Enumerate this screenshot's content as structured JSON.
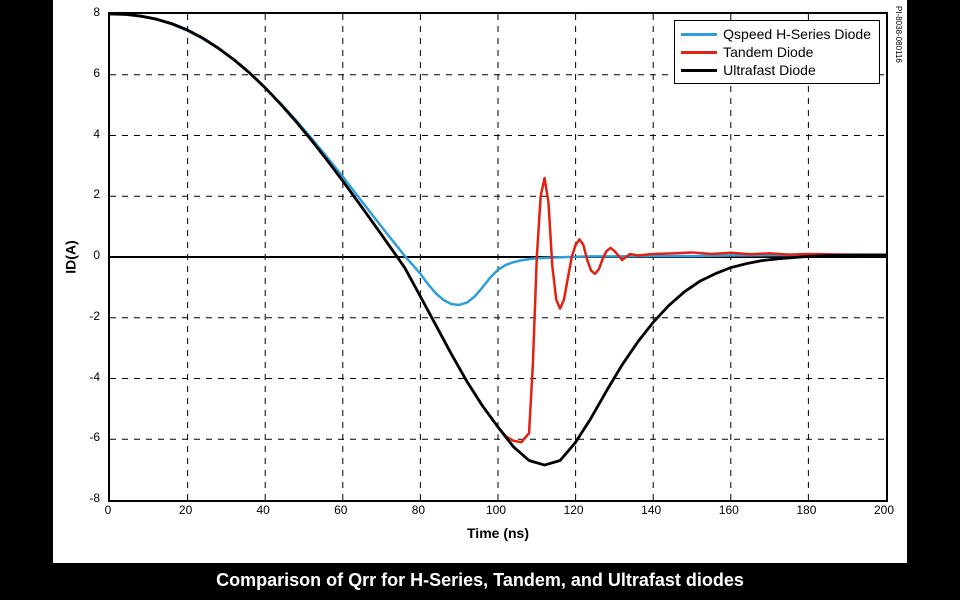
{
  "caption": "Comparison of Qrr for H-Series, Tandem, and Ultrafast diodes",
  "side_code": "PI-8038-080116",
  "chart": {
    "type": "line",
    "background_color": "#ffffff",
    "grid_color": "#000000",
    "grid_dash": "6,6",
    "zero_line_width": 2,
    "xlabel": "Time (ns)",
    "ylabel": "ID(A)",
    "label_fontsize": 14,
    "tick_fontsize": 12,
    "xlim": [
      0,
      200
    ],
    "ylim": [
      -8,
      8
    ],
    "xtick_step": 20,
    "ytick_step": 2,
    "legend": {
      "position": "top-right",
      "items": [
        {
          "label": "Qspeed H-Series Diode",
          "color": "#2e9ddb"
        },
        {
          "label": "Tandem Diode",
          "color": "#e32012"
        },
        {
          "label": "Ultrafast Diode",
          "color": "#000000"
        }
      ]
    },
    "series": [
      {
        "name": "Qspeed H-Series Diode",
        "color": "#2e9ddb",
        "line_width": 2.5,
        "points": [
          [
            0,
            8.0
          ],
          [
            4,
            7.98
          ],
          [
            8,
            7.92
          ],
          [
            12,
            7.82
          ],
          [
            16,
            7.66
          ],
          [
            20,
            7.45
          ],
          [
            24,
            7.18
          ],
          [
            28,
            6.86
          ],
          [
            32,
            6.48
          ],
          [
            36,
            6.05
          ],
          [
            40,
            5.57
          ],
          [
            44,
            5.05
          ],
          [
            48,
            4.49
          ],
          [
            52,
            3.9
          ],
          [
            56,
            3.28
          ],
          [
            60,
            2.64
          ],
          [
            64,
            1.98
          ],
          [
            68,
            1.32
          ],
          [
            72,
            0.67
          ],
          [
            76,
            0.03
          ],
          [
            80,
            -0.55
          ],
          [
            82,
            -0.9
          ],
          [
            84,
            -1.2
          ],
          [
            86,
            -1.42
          ],
          [
            88,
            -1.55
          ],
          [
            90,
            -1.58
          ],
          [
            92,
            -1.5
          ],
          [
            94,
            -1.3
          ],
          [
            96,
            -1.0
          ],
          [
            98,
            -0.68
          ],
          [
            100,
            -0.42
          ],
          [
            102,
            -0.26
          ],
          [
            104,
            -0.17
          ],
          [
            106,
            -0.11
          ],
          [
            108,
            -0.07
          ],
          [
            110,
            -0.04
          ],
          [
            114,
            -0.02
          ],
          [
            118,
            0.0
          ],
          [
            124,
            0.02
          ],
          [
            130,
            0.02
          ],
          [
            140,
            0.03
          ],
          [
            150,
            0.03
          ],
          [
            160,
            0.05
          ],
          [
            170,
            0.06
          ],
          [
            180,
            0.07
          ],
          [
            190,
            0.07
          ],
          [
            200,
            0.07
          ]
        ]
      },
      {
        "name": "Tandem Diode",
        "color": "#e32012",
        "line_width": 2.5,
        "points": [
          [
            0,
            8.0
          ],
          [
            4,
            7.99
          ],
          [
            8,
            7.93
          ],
          [
            12,
            7.83
          ],
          [
            16,
            7.68
          ],
          [
            20,
            7.47
          ],
          [
            24,
            7.2
          ],
          [
            28,
            6.87
          ],
          [
            32,
            6.49
          ],
          [
            36,
            6.06
          ],
          [
            40,
            5.57
          ],
          [
            44,
            5.03
          ],
          [
            48,
            4.45
          ],
          [
            52,
            3.83
          ],
          [
            56,
            3.18
          ],
          [
            60,
            2.5
          ],
          [
            64,
            1.8
          ],
          [
            68,
            1.09
          ],
          [
            72,
            0.37
          ],
          [
            76,
            -0.36
          ],
          [
            80,
            -1.3
          ],
          [
            84,
            -2.25
          ],
          [
            88,
            -3.2
          ],
          [
            92,
            -4.1
          ],
          [
            96,
            -4.9
          ],
          [
            100,
            -5.6
          ],
          [
            102,
            -5.9
          ],
          [
            104,
            -6.05
          ],
          [
            106,
            -6.1
          ],
          [
            108,
            -5.8
          ],
          [
            109,
            -3.5
          ],
          [
            110,
            0.0
          ],
          [
            111,
            2.0
          ],
          [
            112,
            2.6
          ],
          [
            113,
            1.8
          ],
          [
            114,
            -0.3
          ],
          [
            115,
            -1.4
          ],
          [
            116,
            -1.7
          ],
          [
            117,
            -1.4
          ],
          [
            118,
            -0.7
          ],
          [
            119,
            0.0
          ],
          [
            120,
            0.4
          ],
          [
            121,
            0.58
          ],
          [
            122,
            0.4
          ],
          [
            123,
            -0.1
          ],
          [
            124,
            -0.45
          ],
          [
            125,
            -0.55
          ],
          [
            126,
            -0.4
          ],
          [
            127,
            -0.05
          ],
          [
            128,
            0.2
          ],
          [
            129,
            0.3
          ],
          [
            130,
            0.2
          ],
          [
            132,
            -0.1
          ],
          [
            134,
            0.1
          ],
          [
            136,
            0.05
          ],
          [
            140,
            0.1
          ],
          [
            145,
            0.12
          ],
          [
            150,
            0.15
          ],
          [
            155,
            0.1
          ],
          [
            160,
            0.14
          ],
          [
            165,
            0.09
          ],
          [
            170,
            0.12
          ],
          [
            175,
            0.08
          ],
          [
            180,
            0.1
          ],
          [
            190,
            0.08
          ],
          [
            200,
            0.07
          ]
        ]
      },
      {
        "name": "Ultrafast Diode",
        "color": "#000000",
        "line_width": 2.8,
        "points": [
          [
            0,
            8.0
          ],
          [
            4,
            7.99
          ],
          [
            8,
            7.93
          ],
          [
            12,
            7.83
          ],
          [
            16,
            7.68
          ],
          [
            20,
            7.47
          ],
          [
            24,
            7.2
          ],
          [
            28,
            6.87
          ],
          [
            32,
            6.49
          ],
          [
            36,
            6.06
          ],
          [
            40,
            5.57
          ],
          [
            44,
            5.03
          ],
          [
            48,
            4.45
          ],
          [
            52,
            3.83
          ],
          [
            56,
            3.18
          ],
          [
            60,
            2.5
          ],
          [
            64,
            1.8
          ],
          [
            68,
            1.09
          ],
          [
            72,
            0.37
          ],
          [
            76,
            -0.36
          ],
          [
            80,
            -1.3
          ],
          [
            84,
            -2.25
          ],
          [
            88,
            -3.2
          ],
          [
            92,
            -4.1
          ],
          [
            96,
            -4.9
          ],
          [
            100,
            -5.6
          ],
          [
            104,
            -6.25
          ],
          [
            108,
            -6.7
          ],
          [
            112,
            -6.85
          ],
          [
            116,
            -6.7
          ],
          [
            120,
            -6.1
          ],
          [
            124,
            -5.3
          ],
          [
            128,
            -4.4
          ],
          [
            132,
            -3.55
          ],
          [
            136,
            -2.8
          ],
          [
            140,
            -2.15
          ],
          [
            144,
            -1.6
          ],
          [
            148,
            -1.15
          ],
          [
            152,
            -0.8
          ],
          [
            156,
            -0.55
          ],
          [
            160,
            -0.35
          ],
          [
            164,
            -0.22
          ],
          [
            168,
            -0.12
          ],
          [
            172,
            -0.06
          ],
          [
            176,
            -0.02
          ],
          [
            180,
            0.02
          ],
          [
            185,
            0.05
          ],
          [
            190,
            0.06
          ],
          [
            195,
            0.07
          ],
          [
            200,
            0.07
          ]
        ]
      }
    ]
  }
}
